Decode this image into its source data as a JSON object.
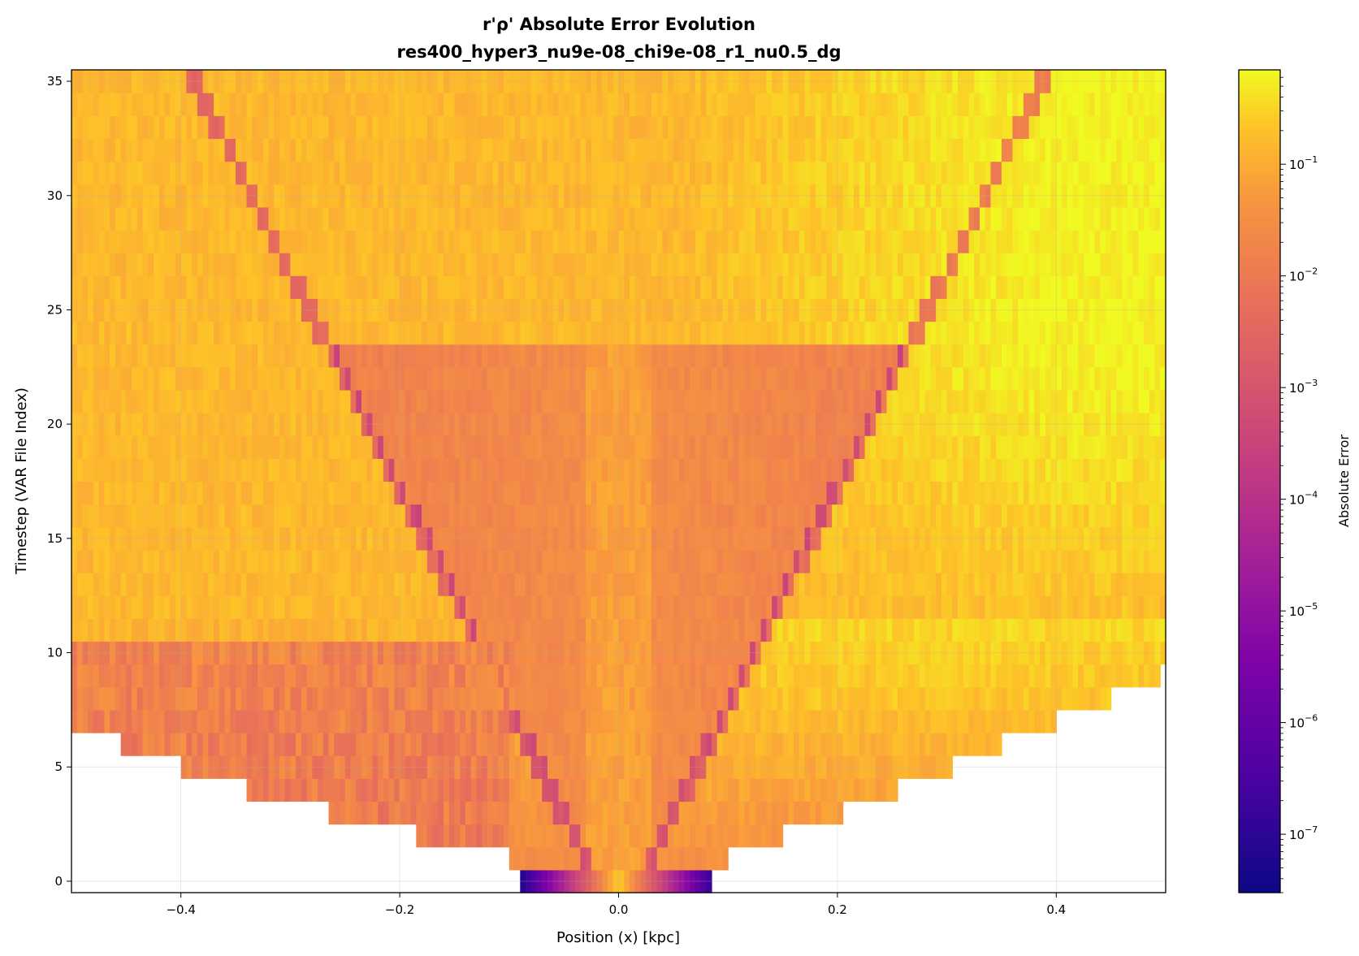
{
  "chart_data": {
    "type": "heatmap",
    "title": "r'ρ' Absolute Error Evolution",
    "subtitle": "res400_hyper3_nu9e-08_chi9e-08_r1_nu0.5_dg",
    "xlabel": "Position (x) [kpc]",
    "ylabel": "Timestep (VAR File Index)",
    "xlim": [
      -0.5,
      0.5
    ],
    "ylim": [
      -0.5,
      35.5
    ],
    "x_ticks": [
      -0.4,
      -0.2,
      0.0,
      0.2,
      0.4
    ],
    "x_tick_labels": [
      "−0.4",
      "−0.2",
      "0.0",
      "0.2",
      "0.4"
    ],
    "y_ticks": [
      0,
      5,
      10,
      15,
      20,
      25,
      30,
      35
    ],
    "y_tick_labels": [
      "0",
      "5",
      "10",
      "15",
      "20",
      "25",
      "30",
      "35"
    ],
    "grid": true,
    "colormap": "plasma",
    "colorbar": {
      "label": "Absolute Error",
      "scale": "log",
      "range": [
        3e-08,
        0.7
      ],
      "ticks": [
        1e-07,
        1e-06,
        1e-05,
        0.0001,
        0.001,
        0.01,
        0.1
      ],
      "tick_labels": [
        "10−7",
        "10−6",
        "10−5",
        "10−4",
        "10−3",
        "10−2",
        "10−1"
      ]
    },
    "row_extents": [
      {
        "t": 0,
        "x_min": -0.09,
        "x_max": 0.085
      },
      {
        "t": 1,
        "x_min": -0.1,
        "x_max": 0.1
      },
      {
        "t": 2,
        "x_min": -0.185,
        "x_max": 0.152
      },
      {
        "t": 3,
        "x_min": -0.265,
        "x_max": 0.205
      },
      {
        "t": 4,
        "x_min": -0.34,
        "x_max": 0.257
      },
      {
        "t": 5,
        "x_min": -0.4,
        "x_max": 0.305
      },
      {
        "t": 6,
        "x_min": -0.455,
        "x_max": 0.352
      },
      {
        "t": 7,
        "x_min": -0.5,
        "x_max": 0.402
      },
      {
        "t": 8,
        "x_min": -0.5,
        "x_max": 0.45
      },
      {
        "t": 9,
        "x_min": -0.5,
        "x_max": 0.497
      }
    ],
    "description_values": {
      "background_error_left_late": 0.15,
      "background_error_right_late": 0.6,
      "central_band_error": 0.03,
      "initial_row_center_error": 0.3,
      "initial_row_edge_error": 5e-08
    }
  }
}
